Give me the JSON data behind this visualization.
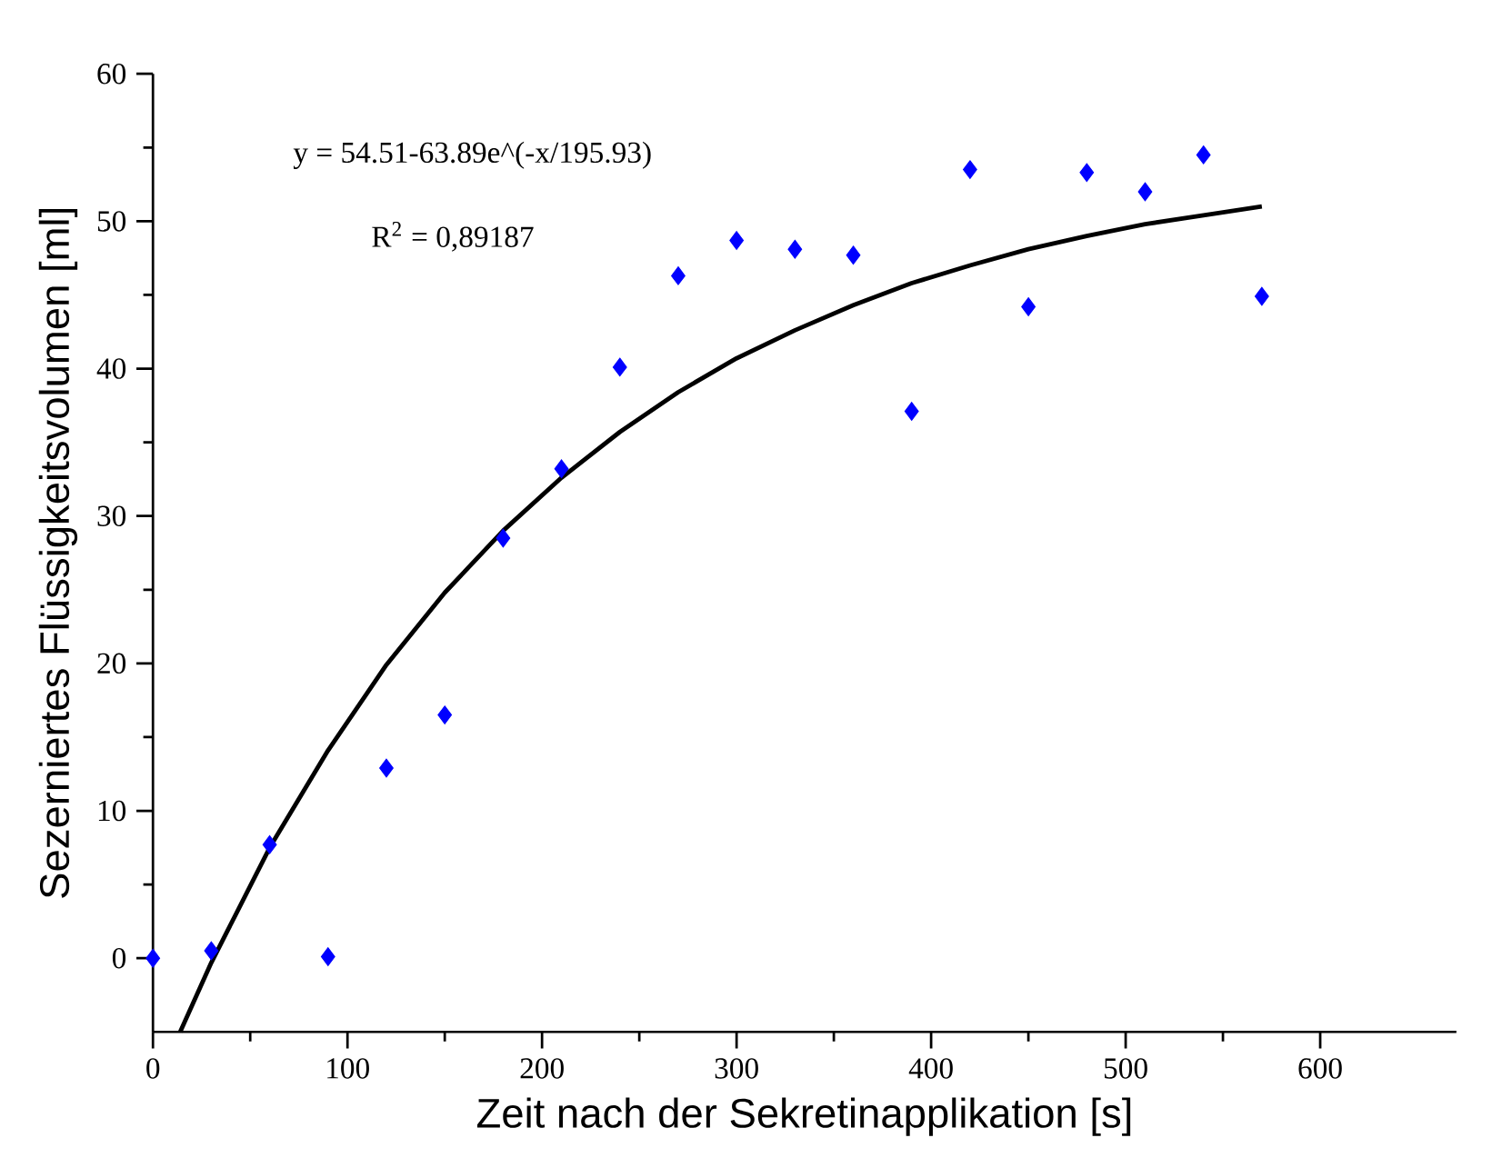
{
  "chart_data": {
    "type": "scatter",
    "xlabel": "Zeit nach der Sekretinapplikation [s]",
    "ylabel": "Sezerniertes Flüssigkeitsvolumen [ml]",
    "xlim": [
      0,
      670
    ],
    "ylim": [
      -5,
      60
    ],
    "xticks": [
      0,
      100,
      200,
      300,
      400,
      500,
      600
    ],
    "yticks": [
      0,
      10,
      20,
      30,
      40,
      50,
      60
    ],
    "marker": "diamond",
    "grid": false,
    "annotations": [
      "y = 54.51-63.89e^(-x/195.93)",
      "R$^{2}$ =     0,89187"
    ],
    "series": [
      {
        "color": "#0000ff",
        "x": [
          0,
          30,
          60,
          90,
          120,
          150,
          180,
          210,
          240,
          270,
          300,
          330,
          360,
          390,
          420,
          450,
          480,
          510,
          540,
          570
        ],
        "values": [
          0,
          0.5,
          7.7,
          0.1,
          12.9,
          16.5,
          28.5,
          33.2,
          40.1,
          46.3,
          48.7,
          48.1,
          47.7,
          37.1,
          53.5,
          44.2,
          53.3,
          52.0,
          54.5,
          44.9
        ]
      },
      {
        "type": "line",
        "color": "#000000",
        "marker": "none",
        "x": [
          14,
          30,
          60,
          90,
          120,
          150,
          180,
          210,
          240,
          270,
          300,
          330,
          360,
          390,
          420,
          450,
          480,
          510,
          540,
          570
        ],
        "values": [
          -5.0,
          -0.3,
          7.5,
          14.1,
          19.9,
          24.8,
          29.0,
          32.6,
          35.7,
          38.4,
          40.7,
          42.6,
          44.3,
          45.8,
          47.0,
          48.1,
          49.0,
          49.8,
          50.4,
          51.0
        ]
      }
    ]
  }
}
